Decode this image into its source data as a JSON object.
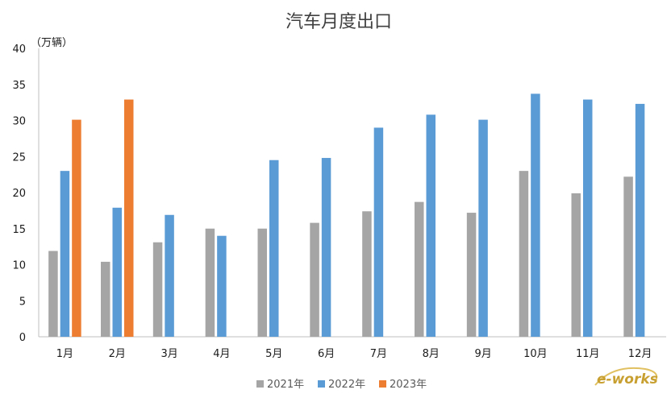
{
  "chart_data": {
    "type": "bar",
    "title": "汽车月度出口",
    "ylabel": "（万辆）",
    "xlabel": "",
    "ylim": [
      0,
      40
    ],
    "yticks": [
      0,
      5,
      10,
      15,
      20,
      25,
      30,
      35,
      40
    ],
    "categories": [
      "1月",
      "2月",
      "3月",
      "4月",
      "5月",
      "6月",
      "7月",
      "8月",
      "9月",
      "10月",
      "11月",
      "12月"
    ],
    "series": [
      {
        "name": "2021年",
        "color": "#a5a5a5",
        "values": [
          11.9,
          10.4,
          13.1,
          15.0,
          15.0,
          15.8,
          17.4,
          18.7,
          17.2,
          23.0,
          19.9,
          22.2
        ]
      },
      {
        "name": "2022年",
        "color": "#5b9bd5",
        "values": [
          23.0,
          17.9,
          16.9,
          14.0,
          24.5,
          24.8,
          29.0,
          30.8,
          30.1,
          33.7,
          32.9,
          32.3
        ]
      },
      {
        "name": "2023年",
        "color": "#ed7d31",
        "values": [
          30.1,
          32.9,
          null,
          null,
          null,
          null,
          null,
          null,
          null,
          null,
          null,
          null
        ]
      }
    ],
    "grid": false,
    "legend": "bottom"
  },
  "watermark": {
    "text": "e-works",
    "color": "#c8a032"
  }
}
